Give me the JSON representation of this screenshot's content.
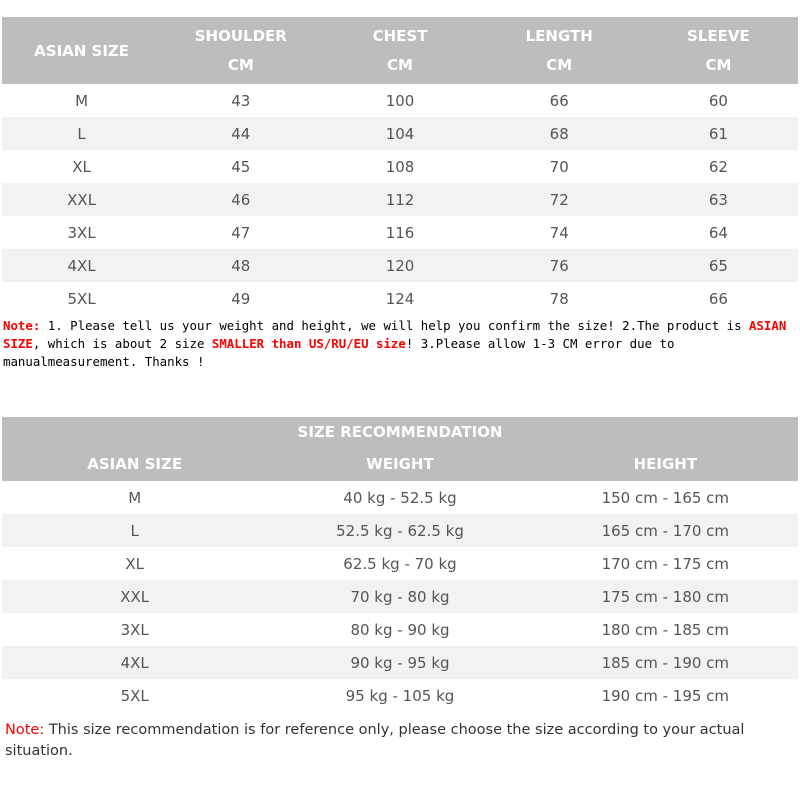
{
  "size_chart": {
    "headers": [
      {
        "top": "ASIAN SIZE",
        "bottom": ""
      },
      {
        "top": "SHOULDER",
        "bottom": "CM"
      },
      {
        "top": "CHEST",
        "bottom": "CM"
      },
      {
        "top": "LENGTH",
        "bottom": "CM"
      },
      {
        "top": "SLEEVE",
        "bottom": "CM"
      }
    ],
    "rows": [
      [
        "M",
        "43",
        "100",
        "66",
        "60"
      ],
      [
        "L",
        "44",
        "104",
        "68",
        "61"
      ],
      [
        "XL",
        "45",
        "108",
        "70",
        "62"
      ],
      [
        "XXL",
        "46",
        "112",
        "72",
        "63"
      ],
      [
        "3XL",
        "47",
        "116",
        "74",
        "64"
      ],
      [
        "4XL",
        "48",
        "120",
        "76",
        "65"
      ],
      [
        "5XL",
        "49",
        "124",
        "78",
        "66"
      ]
    ]
  },
  "note1": {
    "label": "Note:",
    "t1": " 1. Please tell us your weight and height, we will help you confirm the size!  2.The product is ",
    "hl1": "ASIAN SIZE",
    "t2": ", which is about 2 size ",
    "hl2": "SMALLER than US/RU/EU size",
    "t3": "! 3.Please allow 1-3 CM error due to manualmeasurement.  Thanks !"
  },
  "recommendation": {
    "title": "SIZE RECOMMENDATION",
    "headers": [
      "ASIAN SIZE",
      "WEIGHT",
      "HEIGHT"
    ],
    "rows": [
      [
        "M",
        "40 kg - 52.5 kg",
        "150 cm - 165 cm"
      ],
      [
        "L",
        "52.5 kg - 62.5 kg",
        "165 cm - 170 cm"
      ],
      [
        "XL",
        "62.5 kg - 70 kg",
        "170 cm - 175 cm"
      ],
      [
        "XXL",
        "70 kg - 80 kg",
        "175 cm - 180 cm"
      ],
      [
        "3XL",
        "80 kg - 90 kg",
        "180 cm - 185 cm"
      ],
      [
        "4XL",
        "90 kg - 95 kg",
        "185 cm - 190 cm"
      ],
      [
        "5XL",
        "95 kg - 105 kg",
        "190 cm - 195 cm"
      ]
    ]
  },
  "note2": {
    "label": "Note:",
    "text": " This size recommendation is for reference only, please choose the size according to your actual situation."
  },
  "colors": {
    "header_bg": "#bdbdbd",
    "stripe": "#f2f2f2",
    "note_red": "#ff0000"
  }
}
